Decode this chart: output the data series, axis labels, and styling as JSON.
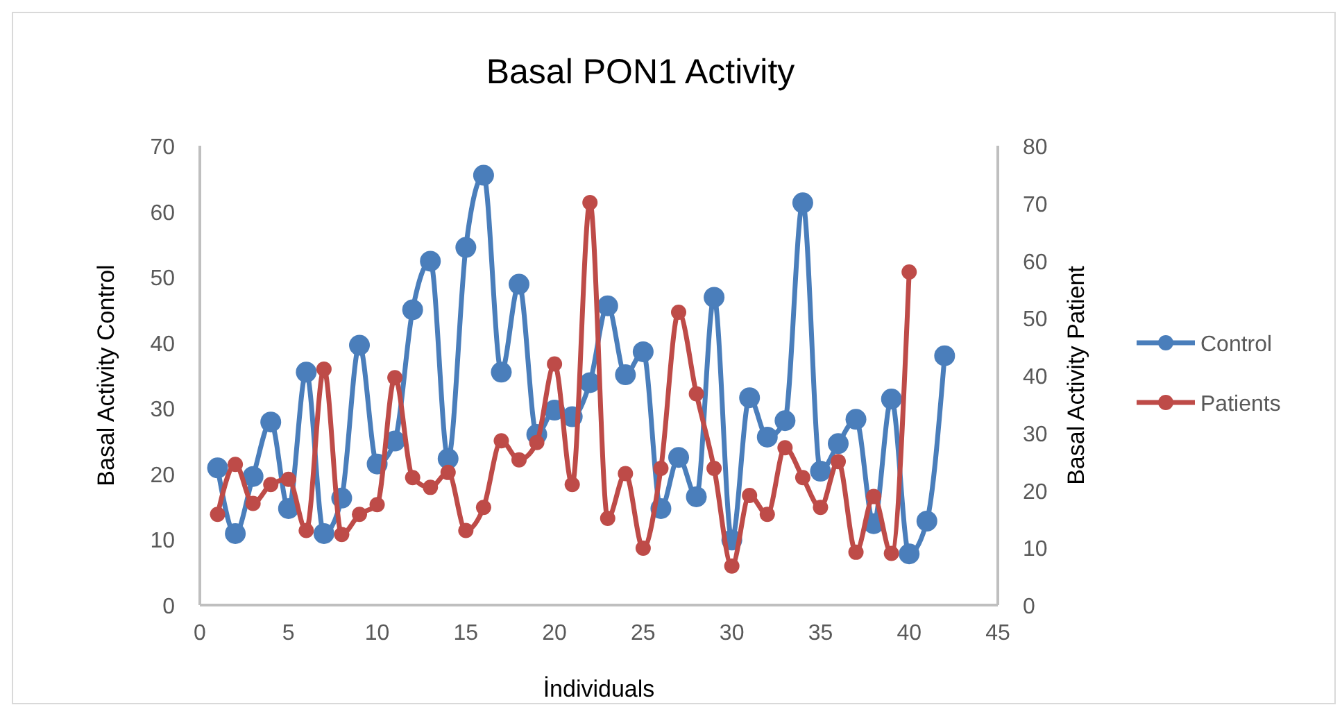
{
  "chart_data": {
    "type": "line",
    "title": "Basal PON1 Activity",
    "xlabel": "İndividuals",
    "ylabel": "Basal Activity Control",
    "y2label": "Basal Activity Patient",
    "xlim": [
      0,
      45
    ],
    "xticks": [
      0,
      5,
      10,
      15,
      20,
      25,
      30,
      35,
      40,
      45
    ],
    "ylim": [
      0,
      70
    ],
    "yticks": [
      0,
      10,
      20,
      30,
      40,
      50,
      60,
      70
    ],
    "y2lim": [
      0,
      80
    ],
    "y2ticks": [
      0,
      10,
      20,
      30,
      40,
      50,
      60,
      70,
      80
    ],
    "x": [
      1,
      2,
      3,
      4,
      5,
      6,
      7,
      8,
      9,
      10,
      11,
      12,
      13,
      14,
      15,
      16,
      17,
      18,
      19,
      20,
      21,
      22,
      23,
      24,
      25,
      26,
      27,
      28,
      29,
      30,
      31,
      32,
      33,
      34,
      35,
      36,
      37,
      38,
      39,
      40,
      41,
      42
    ],
    "marker": "circle",
    "legend": "right",
    "grid": false,
    "series": [
      {
        "name": "Control",
        "color": "#4a7ebb",
        "values": [
          20.9,
          10.9,
          19.6,
          27.9,
          14.7,
          35.5,
          10.9,
          16.3,
          39.6,
          21.5,
          25,
          45,
          52.4,
          22.3,
          54.5,
          65.5,
          35.5,
          48.9,
          26,
          29.7,
          28.7,
          33.9,
          45.6,
          35.1,
          38.6,
          14.7,
          22.5,
          16.5,
          46.9,
          9.9,
          31.6,
          25.6,
          28.1,
          61.3,
          20.4,
          24.6,
          28.3,
          12.4,
          31.4,
          7.8,
          12.8,
          38
        ]
      },
      {
        "name": "Patients",
        "color": "#be4b48",
        "axis": "y2",
        "x": [
          1,
          2,
          3,
          4,
          5,
          6,
          7,
          8,
          9,
          10,
          11,
          12,
          13,
          14,
          15,
          16,
          17,
          18,
          19,
          20,
          21,
          22,
          23,
          24,
          25,
          26,
          27,
          28,
          29,
          30,
          31,
          32,
          33,
          34,
          35,
          36,
          37,
          38,
          39,
          40
        ],
        "values": [
          15.8,
          24.5,
          17.7,
          21,
          21.9,
          13,
          41.1,
          12.3,
          15.8,
          17.5,
          39.6,
          22.2,
          20.5,
          23.1,
          13,
          17,
          28.6,
          25.3,
          28.3,
          42,
          21,
          70.1,
          15.1,
          22.9,
          9.9,
          23.8,
          51,
          36.8,
          23.8,
          6.8,
          19.1,
          15.8,
          27.4,
          22.2,
          17,
          25,
          9.2,
          18.9,
          9,
          58
        ]
      }
    ]
  }
}
